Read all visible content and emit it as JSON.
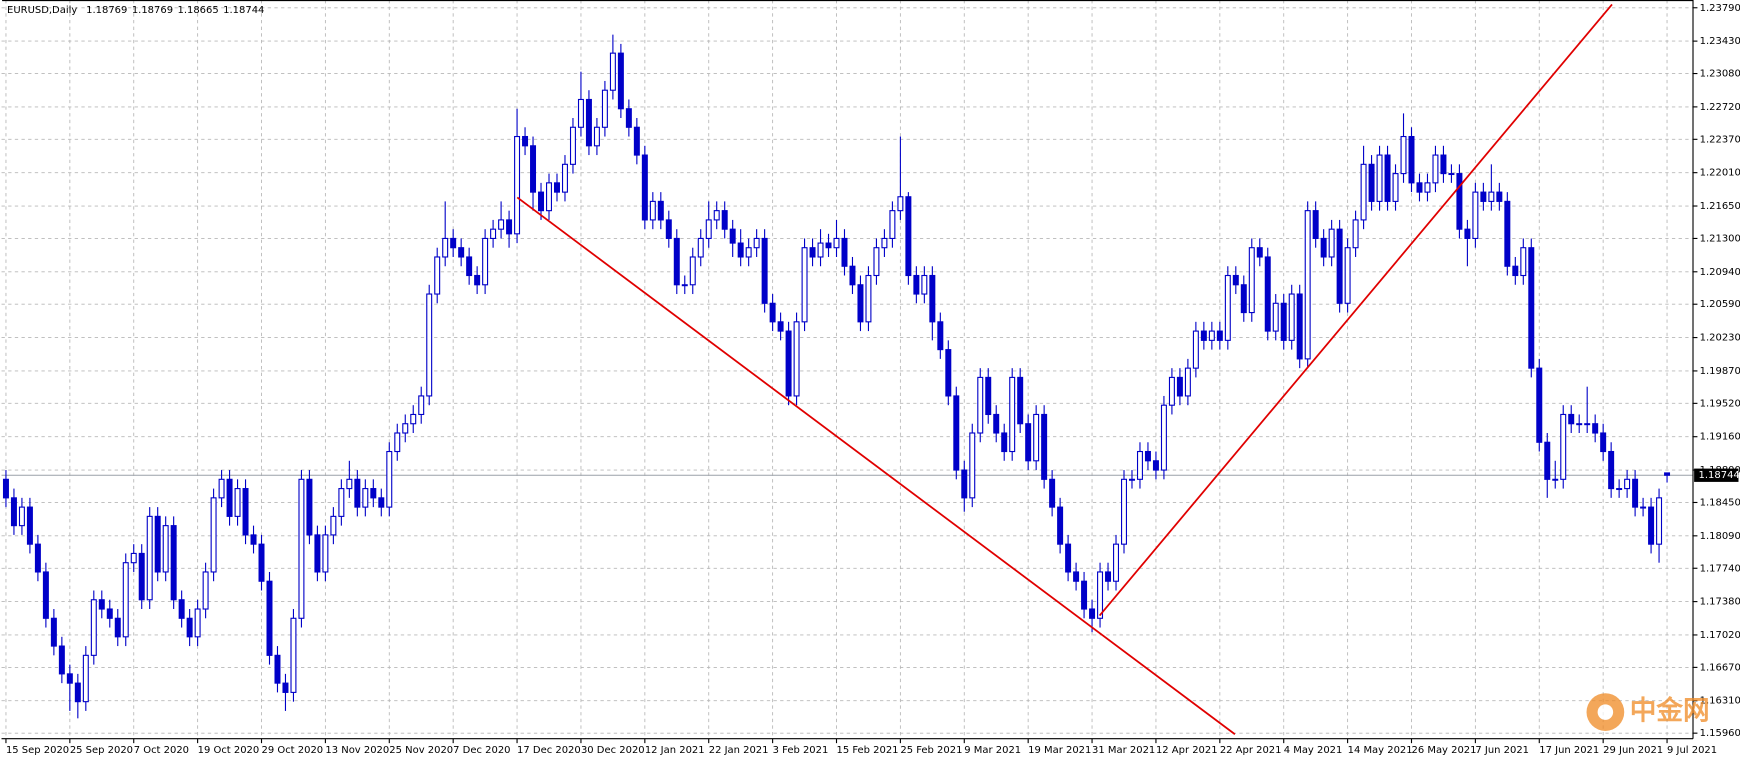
{
  "chart_data": {
    "type": "candlestick",
    "title": "EURUSD,Daily",
    "watermark": "中金网",
    "color": "#0000c8",
    "grid": true,
    "ylim": [
      1.1596,
      1.2379
    ],
    "yticks": [
      {
        "value": 1.2379,
        "label": "1.23790"
      },
      {
        "value": 1.2343,
        "label": "1.23430"
      },
      {
        "value": 1.2308,
        "label": "1.23080"
      },
      {
        "value": 1.2272,
        "label": "1.22720"
      },
      {
        "value": 1.2237,
        "label": "1.22370"
      },
      {
        "value": 1.2201,
        "label": "1.22010"
      },
      {
        "value": 1.2165,
        "label": "1.21650"
      },
      {
        "value": 1.213,
        "label": "1.21300"
      },
      {
        "value": 1.2094,
        "label": "1.20940"
      },
      {
        "value": 1.2059,
        "label": "1.20590"
      },
      {
        "value": 1.2023,
        "label": "1.20230"
      },
      {
        "value": 1.1987,
        "label": "1.19870"
      },
      {
        "value": 1.1952,
        "label": "1.19520"
      },
      {
        "value": 1.1916,
        "label": "1.19160"
      },
      {
        "value": 1.188,
        "label": "1.18800"
      },
      {
        "value": 1.1845,
        "label": "1.18450"
      },
      {
        "value": 1.1809,
        "label": "1.18090"
      },
      {
        "value": 1.1774,
        "label": "1.17740"
      },
      {
        "value": 1.1738,
        "label": "1.17380"
      },
      {
        "value": 1.1702,
        "label": "1.17020"
      },
      {
        "value": 1.1667,
        "label": "1.16670"
      },
      {
        "value": 1.1631,
        "label": "1.16310"
      },
      {
        "value": 1.1596,
        "label": "1.15960"
      }
    ],
    "categories": [
      "15 Sep 2020",
      null,
      null,
      null,
      null,
      null,
      null,
      null,
      "25 Sep 2020",
      null,
      null,
      null,
      null,
      null,
      null,
      null,
      "7 Oct 2020",
      null,
      null,
      null,
      null,
      null,
      null,
      null,
      "19 Oct 2020",
      null,
      null,
      null,
      null,
      null,
      null,
      null,
      "29 Oct 2020",
      null,
      null,
      null,
      null,
      null,
      null,
      null,
      "13 Nov 2020",
      null,
      null,
      null,
      null,
      null,
      null,
      null,
      "25 Nov 2020",
      null,
      null,
      null,
      null,
      null,
      null,
      null,
      "7 Dec 2020",
      null,
      null,
      null,
      null,
      null,
      null,
      null,
      "17 Dec 2020",
      null,
      null,
      null,
      null,
      null,
      null,
      null,
      "30 Dec 2020",
      null,
      null,
      null,
      null,
      null,
      null,
      null,
      "12 Jan 2021",
      null,
      null,
      null,
      null,
      null,
      null,
      null,
      "22 Jan 2021",
      null,
      null,
      null,
      null,
      null,
      null,
      null,
      "3 Feb 2021",
      null,
      null,
      null,
      null,
      null,
      null,
      null,
      "15 Feb 2021",
      null,
      null,
      null,
      null,
      null,
      null,
      null,
      "25 Feb 2021",
      null,
      null,
      null,
      null,
      null,
      null,
      null,
      "9 Mar 2021",
      null,
      null,
      null,
      null,
      null,
      null,
      null,
      "19 Mar 2021",
      null,
      null,
      null,
      null,
      null,
      null,
      null,
      "31 Mar 2021",
      null,
      null,
      null,
      null,
      null,
      null,
      null,
      "12 Apr 2021",
      null,
      null,
      null,
      null,
      null,
      null,
      null,
      "22 Apr 2021",
      null,
      null,
      null,
      null,
      null,
      null,
      null,
      "4 May 2021",
      null,
      null,
      null,
      null,
      null,
      null,
      null,
      "14 May 2021",
      null,
      null,
      null,
      null,
      null,
      null,
      null,
      "26 May 2021",
      null,
      null,
      null,
      null,
      null,
      null,
      null,
      "7 Jun 2021",
      null,
      null,
      null,
      null,
      null,
      null,
      null,
      "17 Jun 2021",
      null,
      null,
      null,
      null,
      null,
      null,
      null,
      "29 Jun 2021",
      null,
      null,
      null,
      null,
      null,
      null,
      null,
      "9 Jul 2021"
    ],
    "open": [
      1.187,
      1.185,
      1.182,
      1.184,
      1.18,
      1.177,
      1.172,
      1.169,
      1.166,
      1.165,
      1.163,
      1.168,
      1.174,
      1.173,
      1.172,
      1.17,
      1.178,
      1.179,
      1.174,
      1.183,
      1.177,
      1.182,
      1.174,
      1.172,
      1.17,
      1.173,
      1.177,
      1.185,
      1.187,
      1.183,
      1.186,
      1.181,
      1.18,
      1.176,
      1.168,
      1.165,
      1.164,
      1.172,
      1.187,
      1.181,
      1.177,
      1.181,
      1.183,
      1.186,
      1.187,
      1.184,
      1.186,
      1.185,
      1.184,
      1.19,
      1.192,
      1.193,
      1.194,
      1.196,
      1.207,
      1.211,
      1.213,
      1.212,
      1.211,
      1.209,
      1.208,
      1.213,
      1.214,
      1.215,
      1.2135,
      1.224,
      1.223,
      1.218,
      1.216,
      1.219,
      1.218,
      1.221,
      1.225,
      1.228,
      1.223,
      1.225,
      1.229,
      1.233,
      1.227,
      1.225,
      1.222,
      1.215,
      1.217,
      1.215,
      1.213,
      1.208,
      1.208,
      1.211,
      1.213,
      1.215,
      1.216,
      1.214,
      1.2125,
      1.211,
      1.212,
      1.213,
      1.206,
      1.204,
      1.203,
      1.196,
      1.204,
      1.212,
      1.211,
      1.2125,
      1.212,
      1.213,
      1.21,
      1.208,
      1.204,
      1.209,
      1.212,
      1.213,
      1.216,
      1.2175,
      1.209,
      1.207,
      1.209,
      1.204,
      1.201,
      1.196,
      1.188,
      1.185,
      1.192,
      1.198,
      1.194,
      1.192,
      1.19,
      1.198,
      1.193,
      1.189,
      1.194,
      1.187,
      1.184,
      1.18,
      1.177,
      1.176,
      1.173,
      1.172,
      1.177,
      1.176,
      1.18,
      1.187,
      1.187,
      1.19,
      1.189,
      1.188,
      1.195,
      1.198,
      1.196,
      1.199,
      1.203,
      1.202,
      1.203,
      1.202,
      1.209,
      1.208,
      1.205,
      1.212,
      1.211,
      1.203,
      1.206,
      1.202,
      1.207,
      1.2,
      1.216,
      1.213,
      1.211,
      1.214,
      1.206,
      1.212,
      1.215,
      1.221,
      1.217,
      1.222,
      1.217,
      1.22,
      1.224,
      1.219,
      1.218,
      1.219,
      1.222,
      1.22,
      1.22,
      1.214,
      1.213,
      1.218,
      1.217,
      1.218,
      1.217,
      1.21,
      1.209,
      1.212,
      1.199,
      1.191,
      1.187,
      1.187,
      1.194,
      1.193,
      1.193,
      1.193,
      1.192,
      1.19,
      1.186,
      1.186,
      1.187,
      1.184,
      1.184,
      1.18,
      1.18769
    ],
    "high": [
      1.188,
      1.186,
      1.185,
      1.185,
      1.181,
      1.178,
      1.173,
      1.17,
      1.167,
      1.166,
      1.169,
      1.175,
      1.175,
      1.174,
      1.173,
      1.179,
      1.18,
      1.18,
      1.184,
      1.184,
      1.183,
      1.183,
      1.175,
      1.173,
      1.174,
      1.178,
      1.186,
      1.188,
      1.188,
      1.187,
      1.187,
      1.182,
      1.181,
      1.177,
      1.169,
      1.166,
      1.173,
      1.188,
      1.188,
      1.182,
      1.182,
      1.184,
      1.187,
      1.189,
      1.188,
      1.187,
      1.187,
      1.186,
      1.191,
      1.193,
      1.194,
      1.195,
      1.197,
      1.208,
      1.212,
      1.217,
      1.214,
      1.213,
      1.212,
      1.21,
      1.214,
      1.215,
      1.217,
      1.216,
      1.227,
      1.225,
      1.224,
      1.219,
      1.22,
      1.22,
      1.222,
      1.226,
      1.231,
      1.229,
      1.226,
      1.23,
      1.235,
      1.234,
      1.228,
      1.226,
      1.223,
      1.218,
      1.218,
      1.216,
      1.214,
      1.209,
      1.212,
      1.214,
      1.217,
      1.217,
      1.217,
      1.215,
      1.214,
      1.213,
      1.214,
      1.214,
      1.207,
      1.205,
      1.204,
      1.205,
      1.213,
      1.213,
      1.214,
      1.2135,
      1.215,
      1.214,
      1.211,
      1.209,
      1.21,
      1.213,
      1.214,
      1.217,
      1.224,
      1.218,
      1.21,
      1.21,
      1.21,
      1.205,
      1.202,
      1.197,
      1.189,
      1.193,
      1.199,
      1.199,
      1.195,
      1.193,
      1.199,
      1.199,
      1.194,
      1.195,
      1.195,
      1.188,
      1.185,
      1.181,
      1.178,
      1.177,
      1.174,
      1.178,
      1.178,
      1.181,
      1.188,
      1.188,
      1.191,
      1.191,
      1.19,
      1.196,
      1.199,
      1.199,
      1.2,
      1.204,
      1.204,
      1.204,
      1.204,
      1.21,
      1.21,
      1.209,
      1.213,
      1.213,
      1.212,
      1.207,
      1.207,
      1.208,
      1.208,
      1.217,
      1.217,
      1.214,
      1.215,
      1.215,
      1.213,
      1.216,
      1.223,
      1.222,
      1.223,
      1.223,
      1.221,
      1.2265,
      1.225,
      1.22,
      1.22,
      1.223,
      1.223,
      1.221,
      1.221,
      1.215,
      1.219,
      1.219,
      1.221,
      1.219,
      1.218,
      1.211,
      1.213,
      1.213,
      1.2,
      1.192,
      1.189,
      1.195,
      1.195,
      1.194,
      1.197,
      1.194,
      1.193,
      1.191,
      1.187,
      1.188,
      1.188,
      1.185,
      1.185,
      1.186,
      1.18769
    ],
    "low": [
      1.184,
      1.181,
      1.181,
      1.179,
      1.176,
      1.171,
      1.168,
      1.165,
      1.162,
      1.1612,
      1.162,
      1.167,
      1.172,
      1.171,
      1.169,
      1.169,
      1.177,
      1.173,
      1.173,
      1.176,
      1.176,
      1.173,
      1.171,
      1.169,
      1.169,
      1.172,
      1.176,
      1.184,
      1.182,
      1.182,
      1.18,
      1.179,
      1.175,
      1.167,
      1.164,
      1.162,
      1.163,
      1.171,
      1.18,
      1.176,
      1.176,
      1.18,
      1.182,
      1.185,
      1.183,
      1.183,
      1.184,
      1.183,
      1.183,
      1.189,
      1.191,
      1.192,
      1.193,
      1.195,
      1.206,
      1.21,
      1.211,
      1.21,
      1.208,
      1.207,
      1.207,
      1.212,
      1.213,
      1.212,
      1.2125,
      1.222,
      1.216,
      1.215,
      1.215,
      1.217,
      1.217,
      1.22,
      1.224,
      1.222,
      1.222,
      1.224,
      1.228,
      1.226,
      1.224,
      1.221,
      1.214,
      1.214,
      1.214,
      1.212,
      1.207,
      1.207,
      1.207,
      1.21,
      1.212,
      1.214,
      1.213,
      1.211,
      1.21,
      1.21,
      1.211,
      1.205,
      1.203,
      1.202,
      1.195,
      1.195,
      1.203,
      1.21,
      1.21,
      1.211,
      1.211,
      1.209,
      1.207,
      1.203,
      1.203,
      1.208,
      1.211,
      1.212,
      1.215,
      1.208,
      1.206,
      1.206,
      1.202,
      1.2,
      1.195,
      1.187,
      1.1835,
      1.184,
      1.191,
      1.193,
      1.191,
      1.189,
      1.189,
      1.192,
      1.188,
      1.188,
      1.186,
      1.183,
      1.179,
      1.176,
      1.175,
      1.172,
      1.1705,
      1.171,
      1.175,
      1.175,
      1.179,
      1.186,
      1.186,
      1.188,
      1.187,
      1.187,
      1.194,
      1.195,
      1.195,
      1.198,
      1.201,
      1.201,
      1.201,
      1.201,
      1.207,
      1.204,
      1.204,
      1.21,
      1.202,
      1.202,
      1.201,
      1.201,
      1.199,
      1.199,
      1.212,
      1.21,
      1.21,
      1.205,
      1.205,
      1.211,
      1.214,
      1.216,
      1.216,
      1.216,
      1.216,
      1.219,
      1.218,
      1.217,
      1.217,
      1.218,
      1.219,
      1.219,
      1.213,
      1.21,
      1.212,
      1.216,
      1.216,
      1.216,
      1.209,
      1.208,
      1.208,
      1.198,
      1.19,
      1.185,
      1.186,
      1.186,
      1.192,
      1.192,
      1.192,
      1.191,
      1.189,
      1.185,
      1.185,
      1.185,
      1.183,
      1.183,
      1.179,
      1.178,
      1.18665
    ],
    "close": [
      1.185,
      1.182,
      1.184,
      1.18,
      1.177,
      1.172,
      1.169,
      1.166,
      1.165,
      1.163,
      1.168,
      1.174,
      1.173,
      1.172,
      1.17,
      1.178,
      1.179,
      1.174,
      1.183,
      1.177,
      1.182,
      1.174,
      1.172,
      1.17,
      1.173,
      1.177,
      1.185,
      1.187,
      1.183,
      1.186,
      1.181,
      1.18,
      1.176,
      1.168,
      1.165,
      1.164,
      1.172,
      1.187,
      1.181,
      1.177,
      1.181,
      1.183,
      1.186,
      1.187,
      1.184,
      1.186,
      1.185,
      1.184,
      1.19,
      1.192,
      1.193,
      1.194,
      1.196,
      1.207,
      1.211,
      1.213,
      1.212,
      1.211,
      1.209,
      1.208,
      1.213,
      1.214,
      1.215,
      1.2135,
      1.224,
      1.223,
      1.218,
      1.216,
      1.219,
      1.218,
      1.221,
      1.225,
      1.228,
      1.223,
      1.225,
      1.229,
      1.233,
      1.227,
      1.225,
      1.222,
      1.215,
      1.217,
      1.215,
      1.213,
      1.208,
      1.208,
      1.211,
      1.213,
      1.215,
      1.216,
      1.214,
      1.2125,
      1.211,
      1.212,
      1.213,
      1.206,
      1.204,
      1.203,
      1.196,
      1.204,
      1.212,
      1.211,
      1.2125,
      1.212,
      1.213,
      1.21,
      1.208,
      1.204,
      1.209,
      1.212,
      1.213,
      1.216,
      1.2175,
      1.209,
      1.207,
      1.209,
      1.204,
      1.201,
      1.196,
      1.188,
      1.185,
      1.192,
      1.198,
      1.194,
      1.192,
      1.19,
      1.198,
      1.193,
      1.189,
      1.194,
      1.187,
      1.184,
      1.18,
      1.177,
      1.176,
      1.173,
      1.172,
      1.177,
      1.176,
      1.18,
      1.187,
      1.187,
      1.19,
      1.189,
      1.188,
      1.195,
      1.198,
      1.196,
      1.199,
      1.203,
      1.202,
      1.203,
      1.202,
      1.209,
      1.208,
      1.205,
      1.212,
      1.211,
      1.203,
      1.206,
      1.202,
      1.207,
      1.2,
      1.216,
      1.213,
      1.211,
      1.214,
      1.206,
      1.212,
      1.215,
      1.221,
      1.217,
      1.222,
      1.217,
      1.22,
      1.224,
      1.219,
      1.218,
      1.219,
      1.222,
      1.22,
      1.22,
      1.214,
      1.213,
      1.218,
      1.217,
      1.218,
      1.217,
      1.21,
      1.209,
      1.212,
      1.199,
      1.191,
      1.187,
      1.187,
      1.194,
      1.193,
      1.193,
      1.193,
      1.192,
      1.19,
      1.186,
      1.186,
      1.187,
      1.184,
      1.184,
      1.18,
      1.185,
      1.18744
    ]
  }
}
